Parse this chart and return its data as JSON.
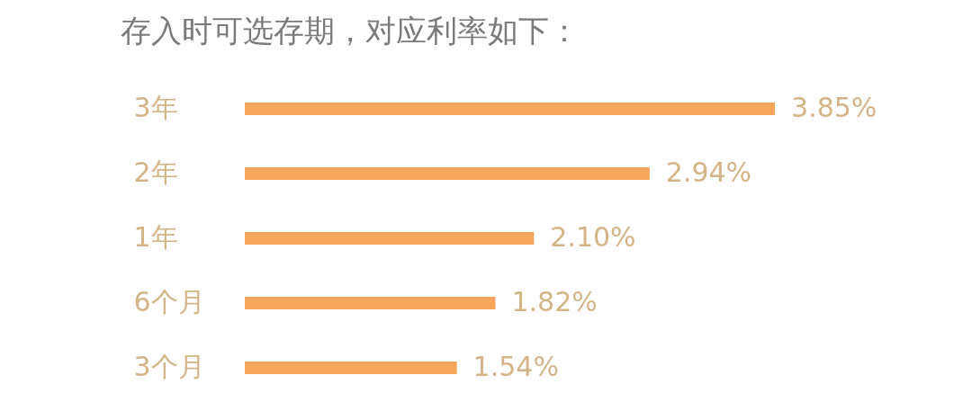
{
  "chart_data": {
    "type": "bar",
    "orientation": "horizontal",
    "title": "存入时可选存期，对应利率如下：",
    "categories": [
      "3年",
      "2年",
      "1年",
      "6个月",
      "3个月"
    ],
    "values": [
      3.85,
      2.94,
      2.1,
      1.82,
      1.54
    ],
    "color": "#f5a55a",
    "value_labels": [
      "3.85%",
      "2.94%",
      "2.10%",
      "1.82%",
      "1.54%"
    ],
    "tick_labels": "y"
  }
}
